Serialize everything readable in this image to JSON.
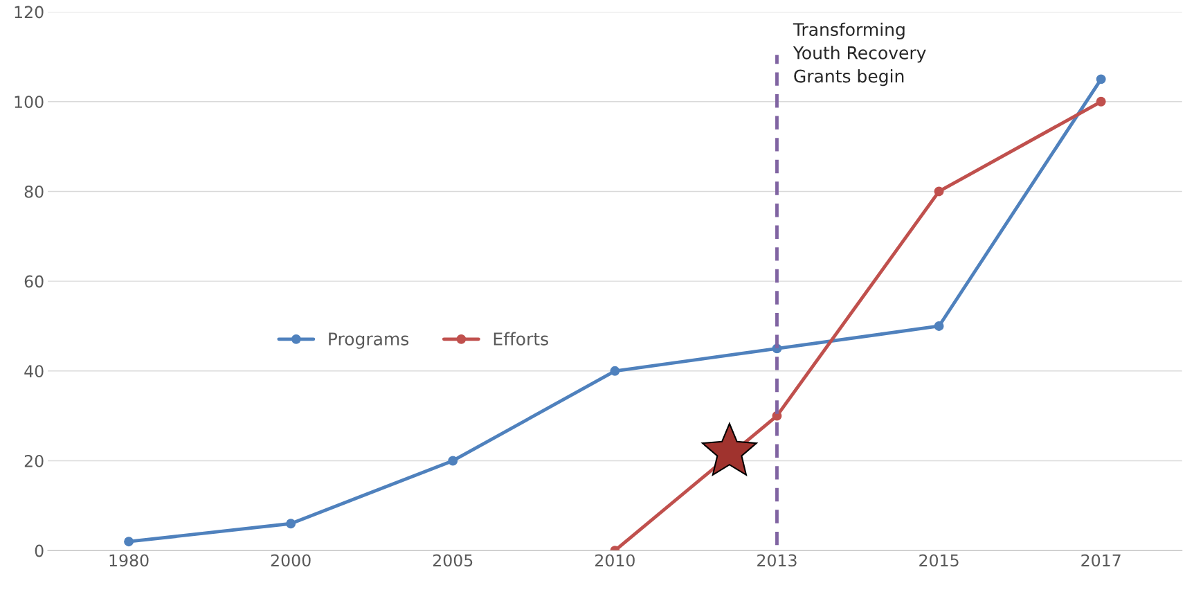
{
  "chart_data": {
    "type": "line",
    "categories": [
      "1980",
      "2000",
      "2005",
      "2010",
      "2013",
      "2015",
      "2017"
    ],
    "series": [
      {
        "name": "Programs",
        "color": "#4f81bd",
        "values": [
          2,
          6,
          20,
          40,
          45,
          50,
          105
        ]
      },
      {
        "name": "Efforts",
        "color": "#c0504d",
        "values": [
          null,
          null,
          null,
          0,
          30,
          80,
          100
        ]
      }
    ],
    "ylim": [
      0,
      120
    ],
    "yticks": [
      0,
      20,
      40,
      60,
      80,
      100,
      120
    ],
    "ref_lines": [
      {
        "axis": "x",
        "value": "2013",
        "label": "Transforming\nYouth Recovery\nGrants begin",
        "color": "#8064a2",
        "line_style": "dashed"
      }
    ],
    "grid": "y",
    "legend": "left",
    "marker": "circle",
    "line_style": "solid"
  }
}
